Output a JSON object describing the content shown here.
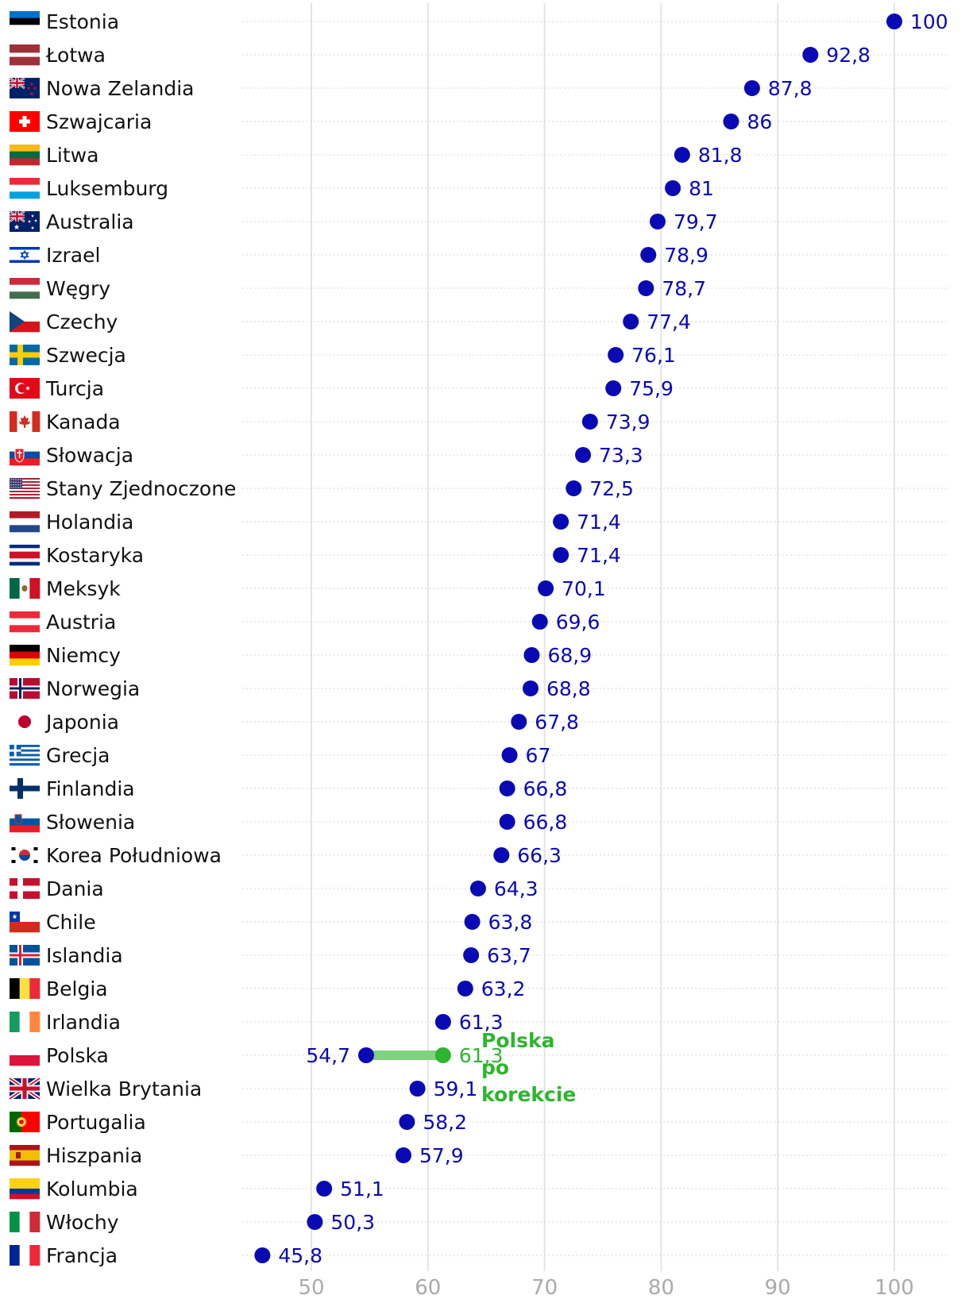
{
  "colors": {
    "dot": "#0a0ab4",
    "value_text": "#0a0ab4",
    "highlight": "#2eb52e",
    "highlight_bar": "#7fd27f",
    "grid": "#e4e4e4",
    "row_line": "#d7d7d7",
    "tick_text": "#aaaaaa",
    "label_text": "#111111"
  },
  "chart_data": {
    "type": "scatter",
    "title": "",
    "xlabel": "",
    "ylabel": "",
    "xlim": [
      45,
      104
    ],
    "xticks": [
      50,
      60,
      70,
      80,
      90,
      100
    ],
    "xtick_labels": [
      "50",
      "60",
      "70",
      "80",
      "90",
      "100"
    ],
    "rows": [
      {
        "name": "Estonia",
        "value": 100,
        "label": "100",
        "flag": "flag-estonia"
      },
      {
        "name": "Łotwa",
        "value": 92.8,
        "label": "92,8",
        "flag": "flag-latvia"
      },
      {
        "name": "Nowa Zelandia",
        "value": 87.8,
        "label": "87,8",
        "flag": "flag-new-zealand"
      },
      {
        "name": "Szwajcaria",
        "value": 86,
        "label": "86",
        "flag": "flag-switzerland"
      },
      {
        "name": "Litwa",
        "value": 81.8,
        "label": "81,8",
        "flag": "flag-lithuania"
      },
      {
        "name": "Luksemburg",
        "value": 81,
        "label": "81",
        "flag": "flag-luxembourg"
      },
      {
        "name": "Australia",
        "value": 79.7,
        "label": "79,7",
        "flag": "flag-australia"
      },
      {
        "name": "Izrael",
        "value": 78.9,
        "label": "78,9",
        "flag": "flag-israel"
      },
      {
        "name": "Węgry",
        "value": 78.7,
        "label": "78,7",
        "flag": "flag-hungary"
      },
      {
        "name": "Czechy",
        "value": 77.4,
        "label": "77,4",
        "flag": "flag-czechia"
      },
      {
        "name": "Szwecja",
        "value": 76.1,
        "label": "76,1",
        "flag": "flag-sweden"
      },
      {
        "name": "Turcja",
        "value": 75.9,
        "label": "75,9",
        "flag": "flag-turkey"
      },
      {
        "name": "Kanada",
        "value": 73.9,
        "label": "73,9",
        "flag": "flag-canada"
      },
      {
        "name": "Słowacja",
        "value": 73.3,
        "label": "73,3",
        "flag": "flag-slovakia"
      },
      {
        "name": "Stany Zjednoczone",
        "value": 72.5,
        "label": "72,5",
        "flag": "flag-usa"
      },
      {
        "name": "Holandia",
        "value": 71.4,
        "label": "71,4",
        "flag": "flag-netherlands"
      },
      {
        "name": "Kostaryka",
        "value": 71.4,
        "label": "71,4",
        "flag": "flag-costa-rica"
      },
      {
        "name": "Meksyk",
        "value": 70.1,
        "label": "70,1",
        "flag": "flag-mexico"
      },
      {
        "name": "Austria",
        "value": 69.6,
        "label": "69,6",
        "flag": "flag-austria"
      },
      {
        "name": "Niemcy",
        "value": 68.9,
        "label": "68,9",
        "flag": "flag-germany"
      },
      {
        "name": "Norwegia",
        "value": 68.8,
        "label": "68,8",
        "flag": "flag-norway"
      },
      {
        "name": "Japonia",
        "value": 67.8,
        "label": "67,8",
        "flag": "flag-japan"
      },
      {
        "name": "Grecja",
        "value": 67,
        "label": "67",
        "flag": "flag-greece"
      },
      {
        "name": "Finlandia",
        "value": 66.8,
        "label": "66,8",
        "flag": "flag-finland"
      },
      {
        "name": "Słowenia",
        "value": 66.8,
        "label": "66,8",
        "flag": "flag-slovenia"
      },
      {
        "name": "Korea Południowa",
        "value": 66.3,
        "label": "66,3",
        "flag": "flag-south-korea"
      },
      {
        "name": "Dania",
        "value": 64.3,
        "label": "64,3",
        "flag": "flag-denmark"
      },
      {
        "name": "Chile",
        "value": 63.8,
        "label": "63,8",
        "flag": "flag-chile"
      },
      {
        "name": "Islandia",
        "value": 63.7,
        "label": "63,7",
        "flag": "flag-iceland"
      },
      {
        "name": "Belgia",
        "value": 63.2,
        "label": "63,2",
        "flag": "flag-belgium"
      },
      {
        "name": "Irlandia",
        "value": 61.3,
        "label": "61,3",
        "flag": "flag-ireland"
      },
      {
        "name": "Polska",
        "value": 54.7,
        "label": "54,7",
        "flag": "flag-poland",
        "corrected_value": 61.3,
        "corrected_label": "61,3",
        "annotation": [
          "Polska",
          "po",
          "korekcie"
        ]
      },
      {
        "name": "Wielka Brytania",
        "value": 59.1,
        "label": "59,1",
        "flag": "flag-uk"
      },
      {
        "name": "Portugalia",
        "value": 58.2,
        "label": "58,2",
        "flag": "flag-portugal"
      },
      {
        "name": "Hiszpania",
        "value": 57.9,
        "label": "57,9",
        "flag": "flag-spain"
      },
      {
        "name": "Kolumbia",
        "value": 51.1,
        "label": "51,1",
        "flag": "flag-colombia"
      },
      {
        "name": "Włochy",
        "value": 50.3,
        "label": "50,3",
        "flag": "flag-italy"
      },
      {
        "name": "Francja",
        "value": 45.8,
        "label": "45,8",
        "flag": "flag-france"
      }
    ]
  }
}
